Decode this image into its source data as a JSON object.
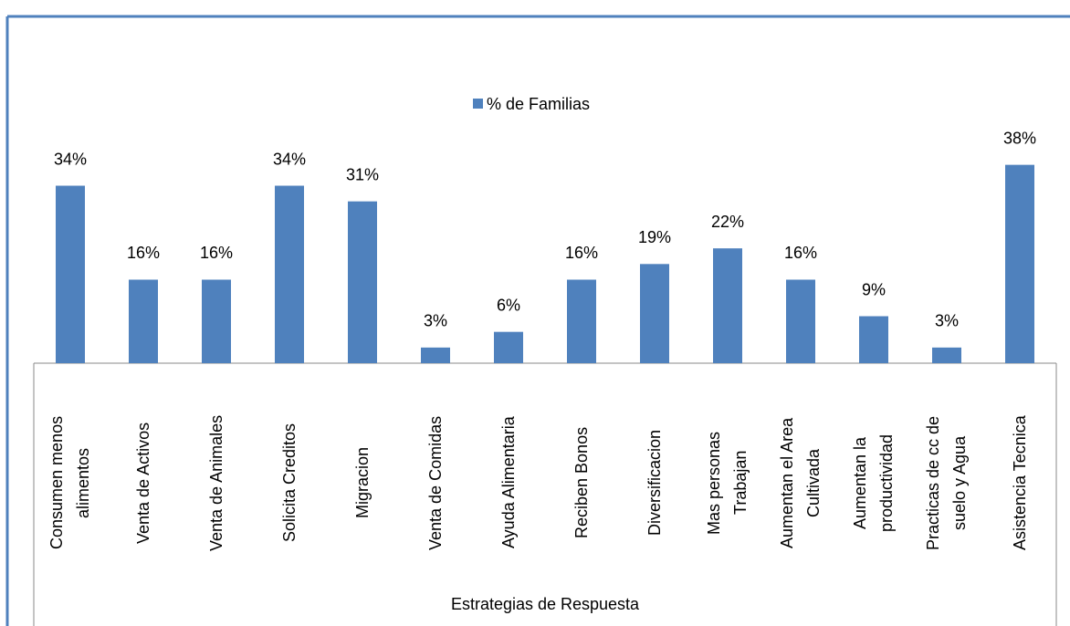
{
  "chart_data": {
    "type": "bar",
    "legend": "% de Familias",
    "x_label": "Estrategias de Respuesta",
    "categories": [
      "Consumen menos\nalimentos",
      "Venta de Activos",
      "Venta de Animales",
      "Solicita Creditos",
      "Migracion",
      "Venta de Comidas",
      "Ayuda Alimentaria",
      "Reciben Bonos",
      "Diversificacion",
      "Mas personas\nTrabajan",
      "Aumentan el Area\nCultivada",
      "Aumentan la\nproductividad",
      "Practicas de cc de\nsuelo y Agua",
      "Asistencia Tecnica"
    ],
    "values": [
      34,
      16,
      16,
      34,
      31,
      3,
      6,
      16,
      19,
      22,
      16,
      9,
      3,
      38
    ],
    "value_labels": [
      "34%",
      "16%",
      "16%",
      "34%",
      "31%",
      "3%",
      "6%",
      "16%",
      "19%",
      "22%",
      "16%",
      "9%",
      "3%",
      "38%"
    ],
    "color": "#4f81bd"
  }
}
